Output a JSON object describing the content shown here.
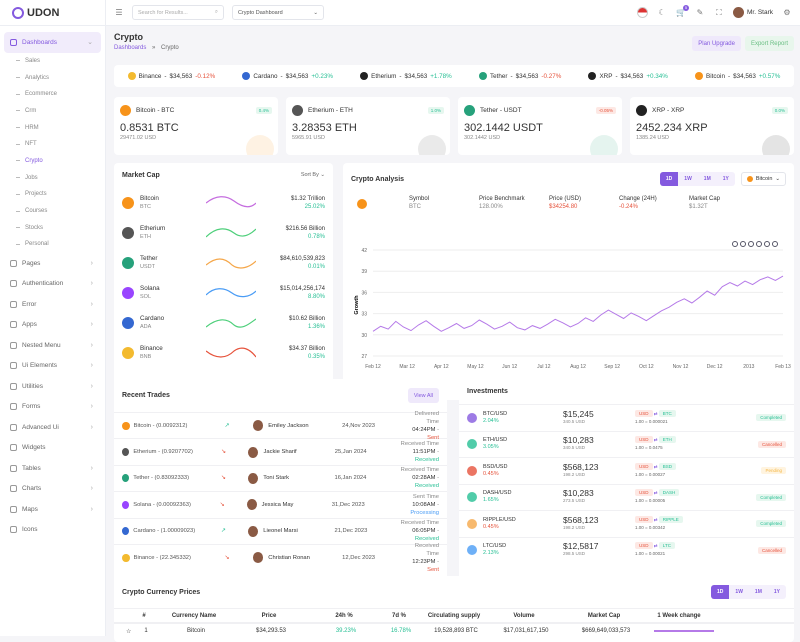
{
  "app": {
    "logo_text": "UDON"
  },
  "sidebar": {
    "items": [
      {
        "label": "Dashboards",
        "icon": "dashboard-icon",
        "active": true
      },
      {
        "label": "Pages",
        "icon": "file-icon"
      },
      {
        "label": "Authentication",
        "icon": "lock-icon"
      },
      {
        "label": "Error",
        "icon": "alert-icon"
      },
      {
        "label": "Apps",
        "icon": "grid-icon"
      },
      {
        "label": "Nested Menu",
        "icon": "list-icon"
      },
      {
        "label": "Ui Elements",
        "icon": "box-icon"
      },
      {
        "label": "Utilities",
        "icon": "tool-icon"
      },
      {
        "label": "Forms",
        "icon": "form-icon"
      },
      {
        "label": "Advanced Ui",
        "icon": "layers-icon"
      },
      {
        "label": "Widgets",
        "icon": "widget-icon"
      },
      {
        "label": "Tables",
        "icon": "table-icon"
      },
      {
        "label": "Charts",
        "icon": "chart-icon"
      },
      {
        "label": "Maps",
        "icon": "map-icon"
      },
      {
        "label": "Icons",
        "icon": "star-icon"
      }
    ],
    "sub_items": [
      "Sales",
      "Analytics",
      "Ecommerce",
      "Crm",
      "HRM",
      "NFT",
      "Crypto",
      "Jobs",
      "Projects",
      "Courses",
      "Stocks",
      "Personal"
    ]
  },
  "topbar": {
    "search_placeholder": "Search for Results...",
    "dashboard_select": "Crypto Dashboard",
    "cart_count": "5",
    "user_name": "Mr. Stark"
  },
  "header": {
    "title": "Crypto",
    "breadcrumb_root": "Dashboards",
    "breadcrumb_sep": "»",
    "breadcrumb_current": "Crypto",
    "plan_button": "Plan Upgrade",
    "export_button": "Export Report"
  },
  "ticker": [
    {
      "name": "Binance",
      "price": "$34,563",
      "change": "-0.12%",
      "dir": "down",
      "color": "#f3ba2f"
    },
    {
      "name": "Cardano",
      "price": "$34,563",
      "change": "+0.23%",
      "dir": "up",
      "color": "#3468d1"
    },
    {
      "name": "Etherium",
      "price": "$34,563",
      "change": "+1.78%",
      "dir": "up",
      "color": "#222222"
    },
    {
      "name": "Tether",
      "price": "$34,563",
      "change": "-0.27%",
      "dir": "down",
      "color": "#26a17b"
    },
    {
      "name": "XRP",
      "price": "$34,563",
      "change": "+0.34%",
      "dir": "up",
      "color": "#222222"
    },
    {
      "name": "Bitcoin",
      "price": "$34,563",
      "change": "+0.57%",
      "dir": "up",
      "color": "#f7931a"
    }
  ],
  "coin_cards": [
    {
      "name": "Bitcoin - BTC",
      "badge": "0.4%",
      "dir": "up",
      "value": "0.8531 BTC",
      "sub": "29471.02 USD",
      "color": "#f7931a"
    },
    {
      "name": "Etherium - ETH",
      "badge": "1.0%",
      "dir": "up",
      "value": "3.28353 ETH",
      "sub": "5965.91 USD",
      "color": "#555555"
    },
    {
      "name": "Tether - USDT",
      "badge": "-0.05%",
      "dir": "down",
      "value": "302.1442 USDT",
      "sub": "302.1442 USD",
      "color": "#26a17b"
    },
    {
      "name": "XRP - XRP",
      "badge": "0.0%",
      "dir": "up",
      "value": "2452.234 XRP",
      "sub": "1385.24 USD",
      "color": "#222222"
    }
  ],
  "market_cap": {
    "title": "Market Cap",
    "sort": "Sort By",
    "rows": [
      {
        "name": "Bitcoin",
        "sym": "BTC",
        "value": "$1.32 Trillion",
        "change": "25.02%",
        "color": "#f7931a",
        "line": "#c56ddf"
      },
      {
        "name": "Etherium",
        "sym": "ETH",
        "value": "$216.56 Billion",
        "change": "0.78%",
        "color": "#555555",
        "line": "#4dcf7a"
      },
      {
        "name": "Tether",
        "sym": "USDT",
        "value": "$84,610,539,823",
        "change": "0.01%",
        "color": "#26a17b",
        "line": "#f5a74a"
      },
      {
        "name": "Solana",
        "sym": "SOL",
        "value": "$15,014,256,174",
        "change": "8.80%",
        "color": "#9945ff",
        "line": "#4a9cf5"
      },
      {
        "name": "Cardano",
        "sym": "ADA",
        "value": "$10.62 Billion",
        "change": "1.36%",
        "color": "#3468d1",
        "line": "#4dcf7a"
      },
      {
        "name": "Binance",
        "sym": "BNB",
        "value": "$34.37 Billion",
        "change": "0.35%",
        "color": "#f3ba2f",
        "line": "#e6533c"
      }
    ]
  },
  "analysis": {
    "title": "Crypto Analysis",
    "tabs": [
      "1D",
      "1W",
      "1M",
      "1Y"
    ],
    "select": "Bitcoin",
    "info": [
      {
        "label": "Symbol",
        "value": "BTC"
      },
      {
        "label": "Price Benchmark",
        "value": "128.00%"
      },
      {
        "label": "Price (USD)",
        "value": "$34254.80"
      },
      {
        "label": "Change (24H)",
        "value": "-0.24%"
      },
      {
        "label": "Market Cap",
        "value": "$1.32T"
      }
    ]
  },
  "chart_data": {
    "type": "line",
    "ylabel": "Growth",
    "ylim": [
      27,
      42
    ],
    "yticks": [
      27,
      30,
      33,
      36,
      39,
      42
    ],
    "xticks": [
      "Feb 12",
      "Mar 12",
      "Apr 12",
      "May 12",
      "Jun 12",
      "Jul 12",
      "Aug 12",
      "Sep 12",
      "Oct 12",
      "Nov 12",
      "Dec 12",
      "2013",
      "Feb 13"
    ],
    "series": [
      {
        "values": [
          30.5,
          31.2,
          30.8,
          31.9,
          31.1,
          30.6,
          31.4,
          32.0,
          31.2,
          30.5,
          31.0,
          31.6,
          30.9,
          31.3,
          32.1,
          31.5,
          30.8,
          31.2,
          31.8,
          31.0,
          30.7,
          31.3,
          30.9,
          31.5,
          32.2,
          31.7,
          31.1,
          31.6,
          32.4,
          31.9,
          32.8,
          33.5,
          32.9,
          32.3,
          33.1,
          32.6,
          32.0,
          32.7,
          33.4,
          33.9,
          34.6,
          35.1,
          34.5,
          35.3,
          36.2,
          35.6,
          36.8,
          37.4,
          36.9,
          37.6,
          37.1,
          37.8,
          38.2,
          37.7,
          38.3
        ]
      }
    ]
  },
  "trades": {
    "title": "Recent Trades",
    "view_all": "View All",
    "rows": [
      {
        "coin": "Bitcoin - (0.0092312)",
        "user": "Emiley Jackson",
        "date": "24,Nov 2023",
        "label": "Delivered Time",
        "time": "04:24PM",
        "status": "Sent",
        "dir": "up",
        "color": "#f7931a"
      },
      {
        "coin": "Etherium - (0.9207702)",
        "user": "Jackie Sharif",
        "date": "25,Jan 2024",
        "label": "Received Time",
        "time": "11:51PM",
        "status": "Received",
        "dir": "down",
        "color": "#555555"
      },
      {
        "coin": "Tether - (0.83092333)",
        "user": "Toni Stark",
        "date": "16,Jan 2024",
        "label": "Received Time",
        "time": "02:28AM",
        "status": "Received",
        "dir": "down",
        "color": "#26a17b"
      },
      {
        "coin": "Solana - (0.00092363)",
        "user": "Jessica May",
        "date": "31,Dec 2023",
        "label": "Sent Time",
        "time": "10:08AM",
        "status": "Processing",
        "dir": "down",
        "color": "#9945ff"
      },
      {
        "coin": "Cardano - (1.00009023)",
        "user": "Lieonel Marsi",
        "date": "21,Dec 2023",
        "label": "Received Time",
        "time": "06:05PM",
        "status": "Received",
        "dir": "up",
        "color": "#3468d1"
      },
      {
        "coin": "Binance - (22.345332)",
        "user": "Christian Ronan",
        "date": "12,Dec 2023",
        "label": "Received Time",
        "time": "12:23PM",
        "status": "Sent",
        "dir": "down",
        "color": "#f3ba2f"
      }
    ]
  },
  "investments": {
    "title": "Investments",
    "rows": [
      {
        "pair": "BTC/USD",
        "pct": "2.04%",
        "dir": "up",
        "value": "$15,245",
        "sub": "340.5 USD",
        "from": "USD",
        "to": "BTC",
        "rate": "1.00 = 0.000021",
        "status": "Completed",
        "color": "#845adf"
      },
      {
        "pair": "ETH/USD",
        "pct": "3.05%",
        "dir": "up",
        "value": "$10,283",
        "sub": "340.5 USD",
        "from": "USD",
        "to": "ETH",
        "rate": "1.00 = 0.0475",
        "status": "Cancelled",
        "color": "#26bf94"
      },
      {
        "pair": "BSD/USD",
        "pct": "0.45%",
        "dir": "down",
        "value": "$568,123",
        "sub": "198.2 USD",
        "from": "USD",
        "to": "BSD",
        "rate": "1.00 = 0.00027",
        "status": "Pending",
        "color": "#e6533c"
      },
      {
        "pair": "DASH/USD",
        "pct": "1.65%",
        "dir": "up",
        "value": "$10,283",
        "sub": "273.5 USD",
        "from": "USD",
        "to": "DASH",
        "rate": "1.00 = 0.00005",
        "status": "Completed",
        "color": "#26bf94"
      },
      {
        "pair": "RIPPLE/USD",
        "pct": "0.45%",
        "dir": "down",
        "value": "$568,123",
        "sub": "198.2 USD",
        "from": "USD",
        "to": "RIPPLE",
        "rate": "1.00 = 0.00342",
        "status": "Completed",
        "color": "#f5a74a"
      },
      {
        "pair": "LTC/USD",
        "pct": "2.13%",
        "dir": "up",
        "value": "$12,5817",
        "sub": "298.5 USD",
        "from": "USD",
        "to": "LTC",
        "rate": "1.00 = 0.00021",
        "status": "Cancelled",
        "color": "#4a9cf5"
      }
    ]
  },
  "prices": {
    "title": "Crypto Currency Prices",
    "tabs": [
      "1D",
      "1W",
      "1M",
      "1Y"
    ],
    "columns": [
      "#",
      "Currency Name",
      "Price",
      "24h %",
      "7d %",
      "Circulating supply",
      "Volume",
      "Market Cap",
      "1 Week change"
    ],
    "row": {
      "num": "1",
      "name": "Bitcoin",
      "price": "$34,293.53",
      "h24": "39.23%",
      "d7": "16.78%",
      "supply": "19,528,893 BTC",
      "volume": "$17,031,617,150",
      "mcap": "$669,649,033,573"
    }
  },
  "colors": {
    "accent": "#845adf",
    "up": "#26bf94",
    "down": "#e6533c"
  }
}
